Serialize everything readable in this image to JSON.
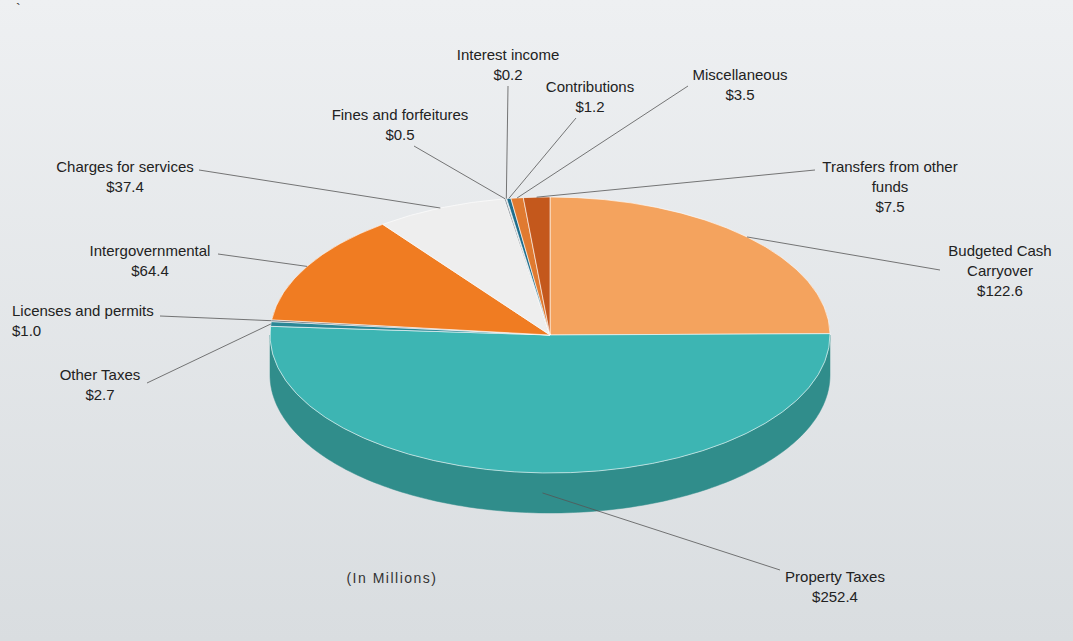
{
  "chart_data": {
    "type": "pie",
    "subtitle": "(In Millions)",
    "annotations": [
      "`"
    ],
    "categories": [
      "Budgeted Cash Carryover",
      "Property Taxes",
      "Other Taxes",
      "Licenses and permits",
      "Intergovernmental",
      "Charges for services",
      "Fines and forfeitures",
      "Interest income",
      "Contributions",
      "Miscellaneous",
      "Transfers from other funds"
    ],
    "values": [
      122.6,
      252.4,
      2.7,
      1.0,
      64.4,
      37.4,
      0.5,
      0.2,
      1.2,
      3.5,
      7.5
    ],
    "value_labels": [
      "$122.6",
      "$252.4",
      "$2.7",
      "$1.0",
      "$64.4",
      "$37.4",
      "$0.5",
      "$0.2",
      "$1.2",
      "$3.5",
      "$7.5"
    ],
    "colors": [
      "#f4a35e",
      "#3db5b3",
      "#2b8796",
      "#5a6670",
      "#f07c22",
      "#eeeeee",
      "#8a9298",
      "#a9b1b6",
      "#1f6e8c",
      "#e07a30",
      "#c4581c"
    ],
    "data_labels": true
  }
}
